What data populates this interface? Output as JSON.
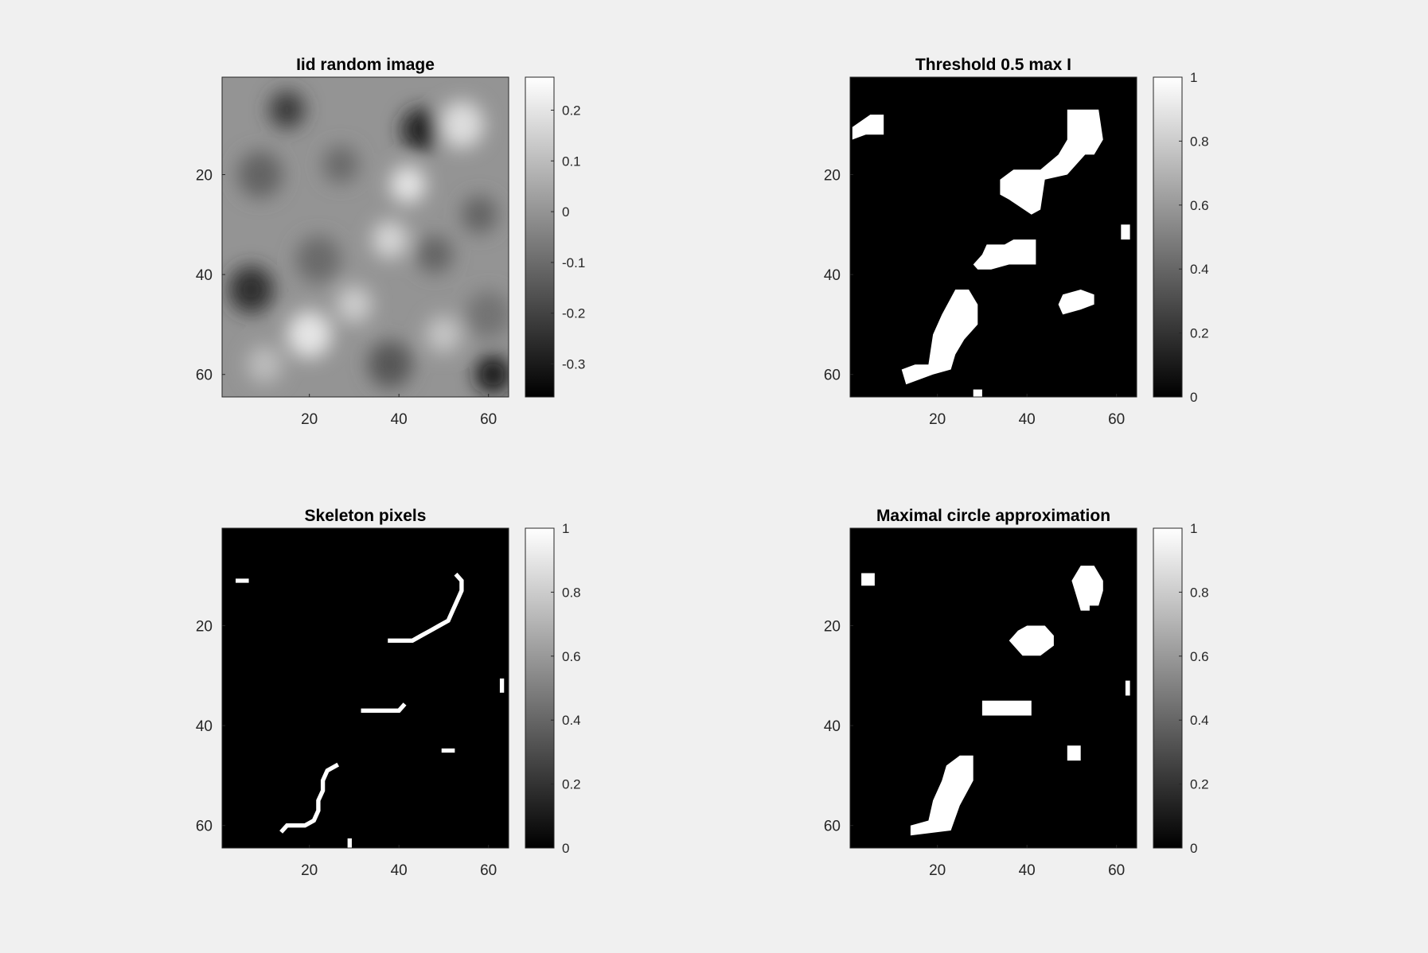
{
  "chart_data": [
    {
      "type": "heatmap",
      "title": "Iid random image",
      "xticks": [
        20,
        40,
        60
      ],
      "yticks": [
        20,
        40,
        60
      ],
      "xlim": [
        0.5,
        64.5
      ],
      "ylim": [
        0.5,
        64.5
      ],
      "colormap": "gray",
      "colorbar": {
        "ticks": [
          0.2,
          0.1,
          0,
          -0.1,
          -0.2,
          -0.3
        ],
        "tick_labels": [
          "0.2",
          "0.1",
          "0",
          "-0.1",
          "-0.2",
          "-0.3"
        ],
        "range": [
          -0.365,
          0.265
        ]
      },
      "blobs": [
        {
          "x": 15,
          "y": 7,
          "r": 4,
          "v": -0.22
        },
        {
          "x": 45,
          "y": 11,
          "r": 4.5,
          "v": -0.28
        },
        {
          "x": 9,
          "y": 20,
          "r": 5,
          "v": -0.12
        },
        {
          "x": 27,
          "y": 18,
          "r": 4,
          "v": -0.1
        },
        {
          "x": 42,
          "y": 22,
          "r": 4,
          "v": 0.2
        },
        {
          "x": 54,
          "y": 10,
          "r": 5,
          "v": 0.18
        },
        {
          "x": 7,
          "y": 43,
          "r": 5,
          "v": -0.25
        },
        {
          "x": 22,
          "y": 37,
          "r": 5,
          "v": -0.1
        },
        {
          "x": 38,
          "y": 33,
          "r": 4,
          "v": 0.16
        },
        {
          "x": 48,
          "y": 36,
          "r": 4,
          "v": -0.12
        },
        {
          "x": 58,
          "y": 28,
          "r": 4,
          "v": -0.12
        },
        {
          "x": 60,
          "y": 48,
          "r": 5,
          "v": -0.08
        },
        {
          "x": 20,
          "y": 52,
          "r": 5,
          "v": 0.2
        },
        {
          "x": 38,
          "y": 58,
          "r": 5,
          "v": -0.15
        },
        {
          "x": 61,
          "y": 60,
          "r": 4,
          "v": -0.32
        },
        {
          "x": 30,
          "y": 46,
          "r": 4,
          "v": 0.14
        },
        {
          "x": 10,
          "y": 58,
          "r": 4,
          "v": 0.1
        },
        {
          "x": 50,
          "y": 52,
          "r": 4,
          "v": 0.12
        }
      ]
    },
    {
      "type": "heatmap",
      "title": "Threshold 0.5 max I",
      "xticks": [
        20,
        40,
        60
      ],
      "yticks": [
        20,
        40,
        60
      ],
      "xlim": [
        0.5,
        64.5
      ],
      "ylim": [
        0.5,
        64.5
      ],
      "colormap": "gray",
      "colorbar": {
        "ticks": [
          1,
          0.8,
          0.6,
          0.4,
          0.2,
          0
        ],
        "tick_labels": [
          "1",
          "0.8",
          "0.6",
          "0.4",
          "0.2",
          "0"
        ],
        "range": [
          0,
          1
        ]
      },
      "regions": [
        [
          [
            1,
            10.5
          ],
          [
            5,
            8
          ],
          [
            8,
            8
          ],
          [
            8,
            12
          ],
          [
            4,
            12
          ],
          [
            1,
            13
          ]
        ],
        [
          [
            49,
            7
          ],
          [
            56,
            7
          ],
          [
            57,
            13
          ],
          [
            55,
            16
          ],
          [
            53,
            16
          ],
          [
            49,
            20
          ],
          [
            44,
            21
          ],
          [
            43,
            27
          ],
          [
            41,
            28
          ],
          [
            36,
            25
          ],
          [
            34,
            24
          ],
          [
            34,
            21
          ],
          [
            37,
            19
          ],
          [
            43,
            19
          ],
          [
            47,
            16
          ],
          [
            49,
            13
          ]
        ],
        [
          [
            61,
            30
          ],
          [
            63,
            30
          ],
          [
            63,
            33
          ],
          [
            61,
            33
          ]
        ],
        [
          [
            42,
            33
          ],
          [
            42,
            38
          ],
          [
            36,
            38
          ],
          [
            32,
            39
          ],
          [
            29,
            39
          ],
          [
            28,
            38
          ],
          [
            30,
            36
          ],
          [
            31,
            34
          ],
          [
            35,
            34
          ],
          [
            37,
            33
          ]
        ],
        [
          [
            52,
            43
          ],
          [
            55,
            44
          ],
          [
            55,
            46
          ],
          [
            52,
            47
          ],
          [
            48,
            48
          ],
          [
            47,
            46
          ],
          [
            48,
            44
          ]
        ],
        [
          [
            24,
            43
          ],
          [
            27,
            43
          ],
          [
            29,
            46
          ],
          [
            29,
            50
          ],
          [
            26,
            53
          ],
          [
            24,
            56
          ],
          [
            23,
            59
          ],
          [
            19,
            60
          ],
          [
            16,
            61
          ],
          [
            13,
            62
          ],
          [
            12,
            59
          ],
          [
            15,
            58
          ],
          [
            18,
            58
          ],
          [
            19,
            52
          ],
          [
            21,
            48
          ]
        ],
        [
          [
            28,
            63
          ],
          [
            30,
            63
          ],
          [
            30,
            65
          ],
          [
            28,
            65
          ]
        ]
      ]
    },
    {
      "type": "heatmap",
      "title": "Skeleton pixels",
      "xticks": [
        20,
        40,
        60
      ],
      "yticks": [
        20,
        40,
        60
      ],
      "xlim": [
        0.5,
        64.5
      ],
      "ylim": [
        0.5,
        64.5
      ],
      "colormap": "gray",
      "colorbar": {
        "ticks": [
          1,
          0.8,
          0.6,
          0.4,
          0.2,
          0
        ],
        "tick_labels": [
          "1",
          "0.8",
          "0.6",
          "0.4",
          "0.2",
          "0"
        ],
        "range": [
          0,
          1
        ]
      },
      "paths": [
        [
          [
            4,
            11
          ],
          [
            6,
            11
          ]
        ],
        [
          [
            38,
            23
          ],
          [
            43,
            23
          ],
          [
            45,
            22
          ],
          [
            47,
            21
          ],
          [
            49,
            20
          ],
          [
            51,
            19
          ],
          [
            52,
            17
          ],
          [
            53,
            15
          ],
          [
            54,
            13
          ],
          [
            54,
            11
          ],
          [
            53,
            10
          ]
        ],
        [
          [
            32,
            37
          ],
          [
            40,
            37
          ],
          [
            41,
            36
          ]
        ],
        [
          [
            50,
            45
          ],
          [
            52,
            45
          ]
        ],
        [
          [
            63,
            31
          ],
          [
            63,
            33
          ]
        ],
        [
          [
            14,
            61
          ],
          [
            15,
            60
          ],
          [
            19,
            60
          ],
          [
            21,
            59
          ],
          [
            22,
            57
          ],
          [
            22,
            55
          ],
          [
            23,
            53
          ],
          [
            23,
            51
          ],
          [
            24,
            49
          ],
          [
            26,
            48
          ]
        ],
        [
          [
            29,
            63
          ],
          [
            29,
            64
          ]
        ]
      ]
    },
    {
      "type": "heatmap",
      "title": "Maximal circle approximation",
      "xticks": [
        20,
        40,
        60
      ],
      "yticks": [
        20,
        40,
        60
      ],
      "xlim": [
        0.5,
        64.5
      ],
      "ylim": [
        0.5,
        64.5
      ],
      "colormap": "gray",
      "colorbar": {
        "ticks": [
          1,
          0.8,
          0.6,
          0.4,
          0.2,
          0
        ],
        "tick_labels": [
          "1",
          "0.8",
          "0.6",
          "0.4",
          "0.2",
          "0"
        ],
        "range": [
          0,
          1
        ]
      },
      "regions": [
        [
          [
            3,
            9.5
          ],
          [
            6,
            9.5
          ],
          [
            6,
            12
          ],
          [
            3,
            12
          ]
        ],
        [
          [
            52,
            8
          ],
          [
            55,
            8
          ],
          [
            57,
            11
          ],
          [
            57,
            13
          ],
          [
            56,
            16
          ],
          [
            54,
            16
          ],
          [
            54,
            17
          ],
          [
            52,
            17
          ],
          [
            51,
            14
          ],
          [
            50,
            11
          ]
        ],
        [
          [
            40,
            20
          ],
          [
            44,
            20
          ],
          [
            46,
            22
          ],
          [
            46,
            24
          ],
          [
            43,
            26
          ],
          [
            39,
            26
          ],
          [
            36,
            23
          ],
          [
            38,
            21
          ]
        ],
        [
          [
            62,
            31
          ],
          [
            63,
            31
          ],
          [
            63,
            34
          ],
          [
            62,
            34
          ]
        ],
        [
          [
            30,
            35
          ],
          [
            41,
            35
          ],
          [
            41,
            38
          ],
          [
            30,
            38
          ]
        ],
        [
          [
            49,
            44
          ],
          [
            52,
            44
          ],
          [
            52,
            47
          ],
          [
            49,
            47
          ]
        ],
        [
          [
            25,
            46
          ],
          [
            28,
            46
          ],
          [
            28,
            51
          ],
          [
            25,
            56
          ],
          [
            23,
            61
          ],
          [
            14,
            62
          ],
          [
            14,
            60
          ],
          [
            18,
            59
          ],
          [
            19,
            55
          ],
          [
            21,
            51
          ],
          [
            22,
            48
          ]
        ]
      ]
    }
  ]
}
